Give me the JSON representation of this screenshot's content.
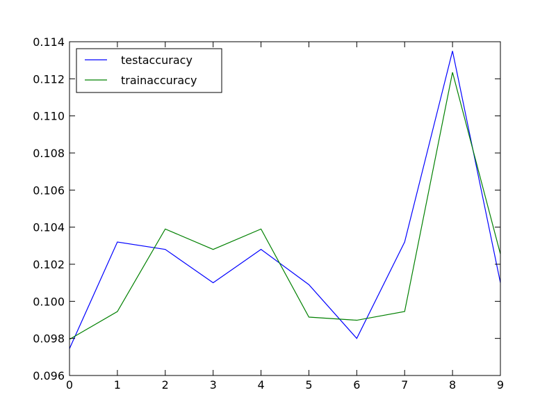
{
  "chart_data": {
    "type": "line",
    "x": [
      0,
      1,
      2,
      3,
      4,
      5,
      6,
      7,
      8,
      9
    ],
    "series": [
      {
        "name": "testaccuracy",
        "color": "#0000ff",
        "values": [
          0.09745,
          0.1032,
          0.1028,
          0.101,
          0.1028,
          0.1009,
          0.098,
          0.1032,
          0.1135,
          0.101
        ]
      },
      {
        "name": "trainaccuracy",
        "color": "#008000",
        "values": [
          0.09795,
          0.09945,
          0.1039,
          0.1028,
          0.1039,
          0.09915,
          0.09898,
          0.09945,
          0.11235,
          0.10255
        ]
      }
    ],
    "xlim": [
      0,
      9
    ],
    "ylim": [
      0.096,
      0.114
    ],
    "xticks": [
      "0",
      "1",
      "2",
      "3",
      "4",
      "5",
      "6",
      "7",
      "8",
      "9"
    ],
    "yticks": [
      "0.096",
      "0.098",
      "0.100",
      "0.102",
      "0.104",
      "0.106",
      "0.108",
      "0.110",
      "0.112",
      "0.114"
    ],
    "title": "",
    "xlabel": "",
    "ylabel": "",
    "grid": false,
    "legend_position": "top-left"
  }
}
